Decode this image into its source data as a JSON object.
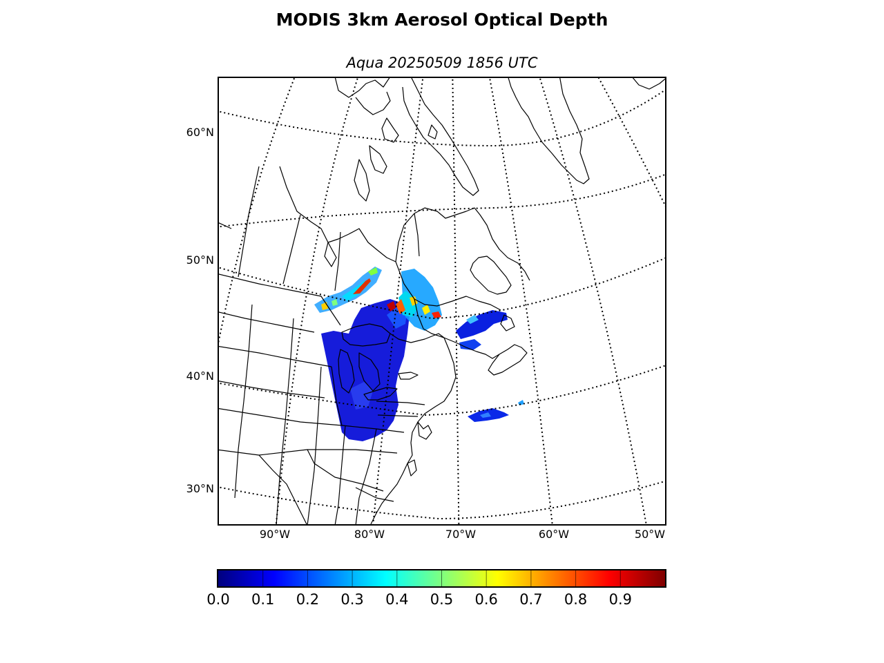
{
  "header": {
    "title": "MODIS 3km Aerosol Optical Depth",
    "subtitle": "Aqua 20250509 1856 UTC"
  },
  "map": {
    "projection": "lambert-conformal",
    "lat_labels": [
      "60°N",
      "50°N",
      "40°N",
      "30°N"
    ],
    "lon_labels": [
      "90°W",
      "80°W",
      "70°W",
      "60°W",
      "50°W"
    ],
    "data_field": "Aerosol Optical Depth"
  },
  "colorbar": {
    "colormap": "jet",
    "range": [
      0.0,
      1.0
    ],
    "tick_labels": [
      "0.0",
      "0.1",
      "0.2",
      "0.3",
      "0.4",
      "0.5",
      "0.6",
      "0.7",
      "0.8",
      "0.9"
    ],
    "colors": [
      "#00007f",
      "#0000ff",
      "#007fff",
      "#00ffff",
      "#7fff7f",
      "#ffff00",
      "#ff7f00",
      "#ff0000",
      "#7f0000"
    ]
  }
}
